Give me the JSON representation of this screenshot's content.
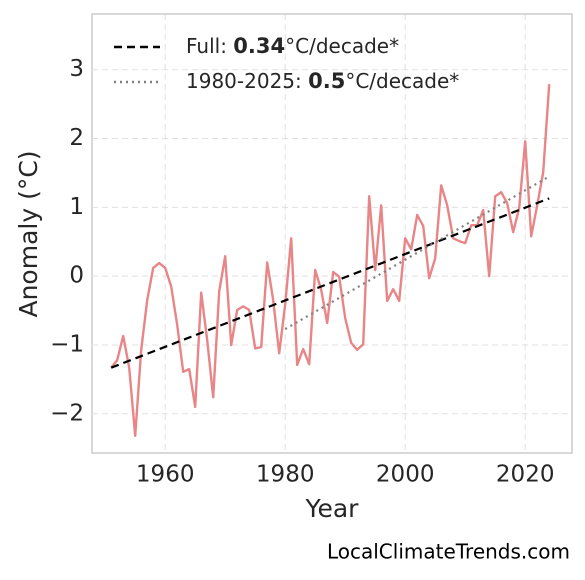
{
  "chart_data": {
    "type": "line",
    "xlabel": "Year",
    "ylabel": "Anomaly (°C)",
    "footer": "LocalClimateTrends.com",
    "xlim": [
      1947.8,
      2027.8
    ],
    "ylim": [
      -2.57,
      3.81
    ],
    "xticks": [
      1960,
      1980,
      2000,
      2020
    ],
    "yticks": [
      {
        "value": -2,
        "label": "−2"
      },
      {
        "value": -1,
        "label": "−1"
      },
      0,
      1,
      2,
      3
    ],
    "grid": true,
    "legend": "upper left",
    "x": [
      1951,
      1952,
      1953,
      1954,
      1955,
      1956,
      1957,
      1958,
      1959,
      1960,
      1961,
      1962,
      1963,
      1964,
      1965,
      1966,
      1967,
      1968,
      1969,
      1970,
      1971,
      1972,
      1973,
      1974,
      1975,
      1976,
      1977,
      1978,
      1979,
      1980,
      1981,
      1982,
      1983,
      1984,
      1985,
      1986,
      1987,
      1988,
      1989,
      1990,
      1991,
      1992,
      1993,
      1994,
      1995,
      1996,
      1997,
      1998,
      1999,
      2000,
      2001,
      2002,
      2003,
      2004,
      2005,
      2006,
      2007,
      2008,
      2009,
      2010,
      2011,
      2012,
      2013,
      2014,
      2015,
      2016,
      2017,
      2018,
      2019,
      2020,
      2021,
      2022,
      2023,
      2024
    ],
    "series": [
      {
        "color": "#e88587",
        "style": "solid",
        "values": [
          -1.33,
          -1.22,
          -0.87,
          -1.33,
          -2.32,
          -1.07,
          -0.35,
          0.12,
          0.19,
          0.12,
          -0.15,
          -0.71,
          -1.39,
          -1.35,
          -1.9,
          -0.24,
          -0.93,
          -1.76,
          -0.22,
          0.29,
          -1.0,
          -0.49,
          -0.44,
          -0.49,
          -1.05,
          -1.03,
          0.2,
          -0.35,
          -1.12,
          -0.41,
          0.55,
          -1.29,
          -1.06,
          -1.28,
          0.09,
          -0.2,
          -0.68,
          0.06,
          -0.01,
          -0.61,
          -0.97,
          -1.07,
          -0.99,
          1.16,
          0.09,
          1.03,
          -0.36,
          -0.19,
          -0.36,
          0.55,
          0.39,
          0.89,
          0.73,
          -0.03,
          0.26,
          1.32,
          1.03,
          0.55,
          0.51,
          0.48,
          0.74,
          0.74,
          0.96,
          0.0,
          1.16,
          1.22,
          1.06,
          0.64,
          0.99,
          1.96,
          0.58,
          1.03,
          1.51,
          2.79
        ]
      },
      {
        "name": "Full: 0.34°C/decade*",
        "name_bold": "0.34",
        "color": "#000000",
        "style": "dashed",
        "x": [
          1951,
          2024
        ],
        "values": [
          -1.33,
          1.13
        ]
      },
      {
        "name": "1980-2025: 0.5°C/decade*",
        "name_bold": "0.5",
        "color": "#808080",
        "style": "dotted",
        "x": [
          1980,
          2024
        ],
        "values": [
          -0.77,
          1.45
        ]
      }
    ]
  }
}
